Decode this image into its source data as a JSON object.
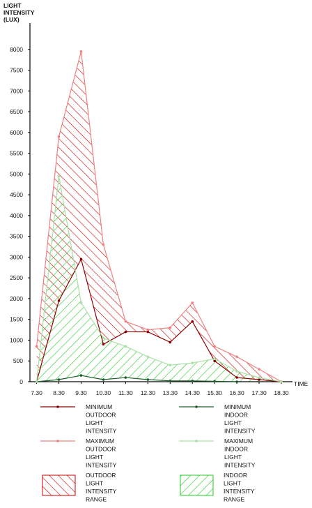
{
  "chart_data": {
    "type": "area",
    "ylabel_lines": [
      "LIGHT",
      "INTENSITY",
      "(LUX)"
    ],
    "xlabel": "TIME",
    "categories": [
      "7.30",
      "8.30",
      "9.30",
      "10.30",
      "11.30",
      "12.30",
      "13.30",
      "14.30",
      "15.30",
      "16.30",
      "17.30",
      "18.30"
    ],
    "x_values": [
      7.5,
      8.5,
      9.5,
      10.5,
      11.5,
      12.5,
      13.5,
      14.5,
      15.5,
      16.5,
      17.5,
      18.5
    ],
    "ylim": [
      0,
      8500
    ],
    "yticks": [
      0,
      500,
      1000,
      1500,
      2000,
      2500,
      3000,
      3500,
      4000,
      4500,
      5000,
      5500,
      6000,
      6500,
      7000,
      7500,
      8000
    ],
    "series": [
      {
        "key": "min_outdoor",
        "name_lines": [
          "MINIMUM",
          "OUTDOOR",
          "LIGHT",
          "INTENSITY"
        ],
        "color": "#8b0000",
        "points": [
          [
            7.5,
            0
          ],
          [
            8.5,
            1950
          ],
          [
            9.5,
            2950
          ],
          [
            10.5,
            900
          ],
          [
            11.5,
            1200
          ],
          [
            12.5,
            1200
          ],
          [
            13.5,
            950
          ],
          [
            14.5,
            1450
          ],
          [
            15.5,
            500
          ],
          [
            16.5,
            100
          ],
          [
            17.5,
            50
          ],
          [
            18.5,
            0
          ]
        ]
      },
      {
        "key": "max_outdoor",
        "name_lines": [
          "MAXIMUM",
          "OUTDOOR",
          "LIGHT",
          "INTENSITY"
        ],
        "color": "#f08080",
        "points": [
          [
            7.5,
            850
          ],
          [
            8.5,
            5900
          ],
          [
            9.5,
            7950
          ],
          [
            10.5,
            3300
          ],
          [
            11.5,
            1450
          ],
          [
            12.5,
            1250
          ],
          [
            13.5,
            1300
          ],
          [
            14.5,
            1900
          ],
          [
            15.5,
            850
          ],
          [
            16.5,
            600
          ],
          [
            17.5,
            300
          ],
          [
            18.5,
            0
          ]
        ]
      },
      {
        "key": "min_indoor",
        "name_lines": [
          "MINIMUM",
          "INDOOR",
          "LIGHT",
          "INTENSITY"
        ],
        "color": "#1a5e2a",
        "points": [
          [
            7.5,
            0
          ],
          [
            8.5,
            50
          ],
          [
            9.5,
            150
          ],
          [
            10.5,
            50
          ],
          [
            11.5,
            100
          ],
          [
            12.5,
            50
          ],
          [
            13.5,
            20
          ],
          [
            14.5,
            20
          ],
          [
            15.5,
            10
          ],
          [
            16.5,
            0
          ]
        ]
      },
      {
        "key": "max_indoor",
        "name_lines": [
          "MAXIMUM",
          "INDOOR",
          "LIGHT",
          "INTENSITY"
        ],
        "color": "#a8e0a8",
        "points": [
          [
            7.5,
            0
          ],
          [
            8.5,
            4950
          ],
          [
            9.5,
            1900
          ],
          [
            10.5,
            1050
          ],
          [
            11.5,
            850
          ],
          [
            12.5,
            600
          ],
          [
            13.5,
            400
          ],
          [
            14.5,
            450
          ],
          [
            15.5,
            550
          ],
          [
            16.5,
            250
          ],
          [
            17.5,
            100
          ],
          [
            18.5,
            0
          ]
        ]
      }
    ],
    "ranges": [
      {
        "key": "outdoor_range",
        "name_lines": [
          "OUTDOOR",
          "LIGHT",
          "INTENSITY",
          "RANGE"
        ],
        "color": "#cc0000",
        "upper": "max_outdoor",
        "lower": "min_outdoor"
      },
      {
        "key": "indoor_range",
        "name_lines": [
          "INDOOR",
          "LIGHT",
          "INTENSITY",
          "RANGE"
        ],
        "color": "#22cc22",
        "upper": "max_indoor",
        "lower": "min_indoor"
      }
    ],
    "grid": false,
    "legend_position": "bottom"
  }
}
